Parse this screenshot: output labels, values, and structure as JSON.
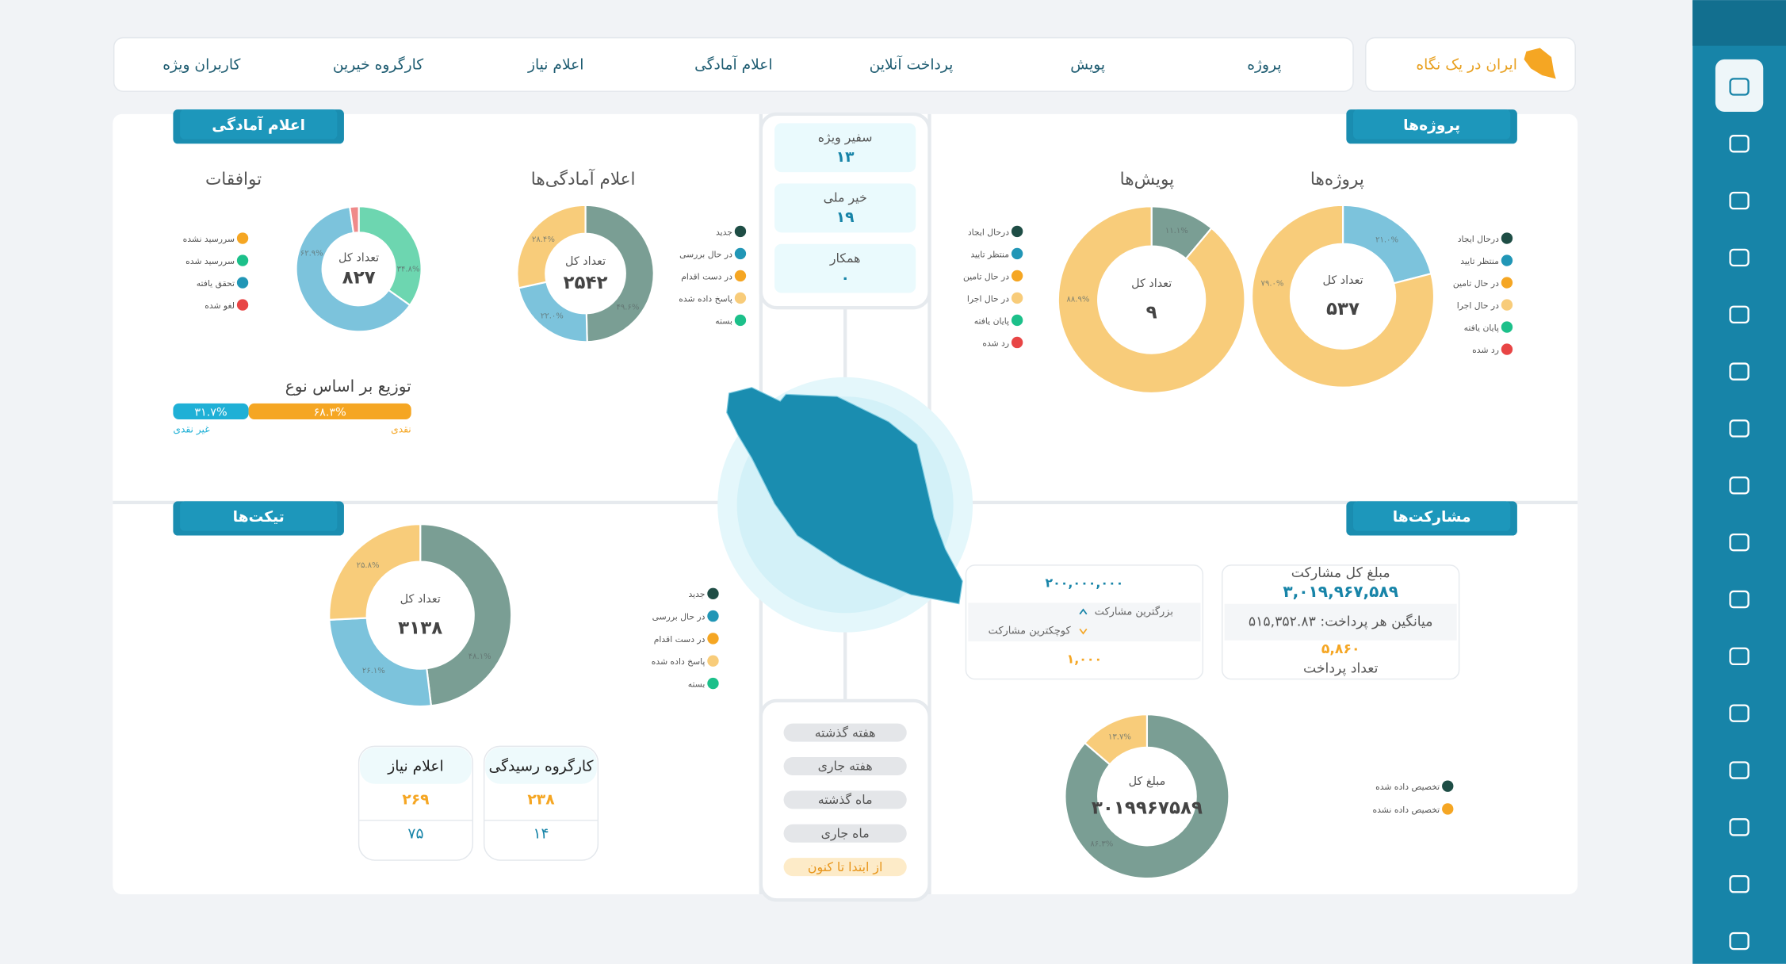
{
  "nav": {
    "brand": "ایران در یک نگاه",
    "items": [
      "پروژه",
      "پویش",
      "پرداخت آنلاین",
      "اعلام آمادگی",
      "اعلام نیاز",
      "کارگروه خیرین",
      "کاربران ویژه"
    ]
  },
  "tabs": [
    "اعلام آمادگی",
    "پروژه‌ها",
    "تیکت‌ها",
    "مشارکت‌ها"
  ],
  "counters": [
    {
      "label": "سفیر ویژه",
      "value": "۱۳"
    },
    {
      "label": "خیر ملی",
      "value": "۱۹"
    },
    {
      "label": "همکار",
      "value": "۰"
    }
  ],
  "filters": [
    "هفته گذشته",
    "هفته جاری",
    "ماه گذشته",
    "ماه جاری",
    "از ابتدا تا کنون"
  ],
  "donuts": [
    {
      "title": "پروژه‌ها",
      "total_label": "تعداد کل",
      "total": "۵۳۷",
      "values": [
        21.0,
        79.0
      ],
      "value_labels": [
        "۲۱.۰%",
        "۷۹.۰%"
      ],
      "colors": [
        "#7cc3dc",
        "#f8cc7a"
      ],
      "legend": {
        "labels": [
          "درحال ایجاد",
          "منتظر تایید",
          "در حال تامین",
          "در حال اجرا",
          "پایان یافته",
          "رد شده"
        ],
        "colors": [
          "#1e4d45",
          "#2196b6",
          "#f5a623",
          "#f8cc7a",
          "#1cc08a",
          "#e84545"
        ]
      }
    },
    {
      "title": "پویش‌ها",
      "total_label": "تعداد کل",
      "total": "۹",
      "values": [
        11.1,
        88.9
      ],
      "value_labels": [
        "۱۱.۱%",
        "۸۸.۹%"
      ],
      "colors": [
        "#7a9e94",
        "#f8cc7a"
      ],
      "legend": {
        "labels": [
          "درحال ایجاد",
          "منتظر تایید",
          "در حال تامین",
          "در حال اجرا",
          "پایان یافته",
          "رد شده"
        ],
        "colors": [
          "#1e4d45",
          "#2196b6",
          "#f5a623",
          "#f8cc7a",
          "#1cc08a",
          "#e84545"
        ]
      }
    },
    {
      "title": "اعلام آمادگی‌ها",
      "total_label": "تعداد کل",
      "total": "۲۵۴۲",
      "values": [
        49.6,
        22.0,
        28.4
      ],
      "value_labels": [
        "۴۹.۶%",
        "۲۲.۰%",
        "۲۸.۴%"
      ],
      "colors": [
        "#7a9e94",
        "#7cc3dc",
        "#f8cc7a"
      ],
      "legend": {
        "labels": [
          "جدید",
          "در حال بررسی",
          "در دست اقدام",
          "پاسخ داده شده",
          "بسته"
        ],
        "colors": [
          "#1e4d45",
          "#2196b6",
          "#f5a623",
          "#f8cc7a",
          "#1cc08a"
        ]
      }
    },
    {
      "title": "توافقات",
      "total_label": "تعداد کل",
      "total": "۸۲۷",
      "values": [
        34.8,
        62.9,
        2.3
      ],
      "value_labels": [
        "۳۴.۸%",
        "۶۲.۹%",
        null
      ],
      "colors": [
        "#6dd6b0",
        "#7cc3dc",
        "#ef8a8a"
      ],
      "legend": {
        "labels": [
          "سررسید نشده",
          "سررسید شده",
          "تحقق یافته",
          "لغو شده"
        ],
        "colors": [
          "#f5a623",
          "#1cc08a",
          "#2196b6",
          "#e84545"
        ]
      }
    },
    {
      "total_label": "تعداد کل",
      "total": "۳۱۳۸",
      "values": [
        48.1,
        26.1,
        25.8
      ],
      "value_labels": [
        "۴۸.۱%",
        "۲۶.۱%",
        "۲۵.۸%"
      ],
      "colors": [
        "#7a9e94",
        "#7cc3dc",
        "#f8cc7a"
      ],
      "legend": {
        "labels": [
          "جدید",
          "در حال بررسی",
          "در دست اقدام",
          "پاسخ داده شده",
          "بسته"
        ],
        "colors": [
          "#1e4d45",
          "#2196b6",
          "#f5a623",
          "#f8cc7a",
          "#1cc08a"
        ]
      }
    },
    {
      "total_label": "مبلغ کل",
      "total": "۳۰۱۹۹۶۷۵۸۹",
      "values": [
        86.3,
        13.7
      ],
      "value_labels": [
        "۸۶.۳%",
        "۱۳.۷%"
      ],
      "colors": [
        "#7a9e94",
        "#f8cc7a"
      ],
      "legend": {
        "labels": [
          "تخصیص داده شده",
          "تخصیص داده نشده"
        ],
        "colors": [
          "#1e4d45",
          "#f5a623"
        ]
      }
    }
  ],
  "type_distribution": {
    "title": "توزیع بر اساس نوع",
    "values": [
      31.7,
      68.3
    ],
    "value_labels": [
      "۳۱.۷%",
      "۶۸.۳%"
    ],
    "names": [
      "غیر نقدی",
      "نقدی"
    ],
    "colors": [
      "#1fb0d6",
      "#f5a623"
    ]
  },
  "participation": {
    "max_value": "۲۰۰,۰۰۰,۰۰۰",
    "max_label": "بزرگترین مشارکت",
    "min_label": "کوچکترین مشارکت",
    "min_value": "۱,۰۰۰",
    "total_label": "مبلغ کل مشارکت",
    "total": "۳,۰۱۹,۹۶۷,۵۸۹",
    "average": "میانگین هر پرداخت: ۵۱۵,۳۵۲.۸۳",
    "count": "۵,۸۶۰",
    "count_label": "تعداد پرداخت"
  },
  "cards": [
    {
      "title": "اعلام نیاز",
      "values": [
        "۲۶۹",
        "۷۵"
      ]
    },
    {
      "title": "کارگروه رسیدگی",
      "values": [
        "۲۳۸",
        "۱۴"
      ]
    }
  ]
}
